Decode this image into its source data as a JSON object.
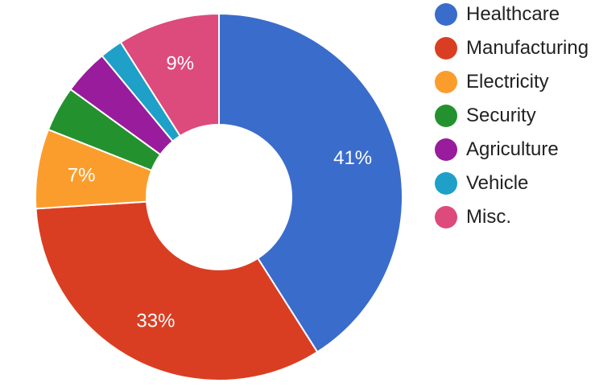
{
  "chart_data": {
    "type": "pie",
    "hole": true,
    "start_angle_deg": 0,
    "direction": "clockwise",
    "categories": [
      "Healthcare",
      "Manufacturing",
      "Electricity",
      "Security",
      "Agriculture",
      "Vehicle",
      "Misc."
    ],
    "values": [
      41,
      33,
      7,
      4,
      4,
      2,
      9
    ],
    "colors": [
      "#3a6ccc",
      "#da3e22",
      "#fb9d2d",
      "#23922e",
      "#981c9b",
      "#1ea0c8",
      "#dd4a7c"
    ],
    "slice_labels": [
      "41%",
      "33%",
      "7%",
      "",
      "",
      "",
      "9%"
    ],
    "legend": {
      "position": "top-right",
      "entries": [
        "Healthcare",
        "Manufacturing",
        "Electricity",
        "Security",
        "Agriculture",
        "Vehicle",
        "Misc."
      ]
    }
  }
}
